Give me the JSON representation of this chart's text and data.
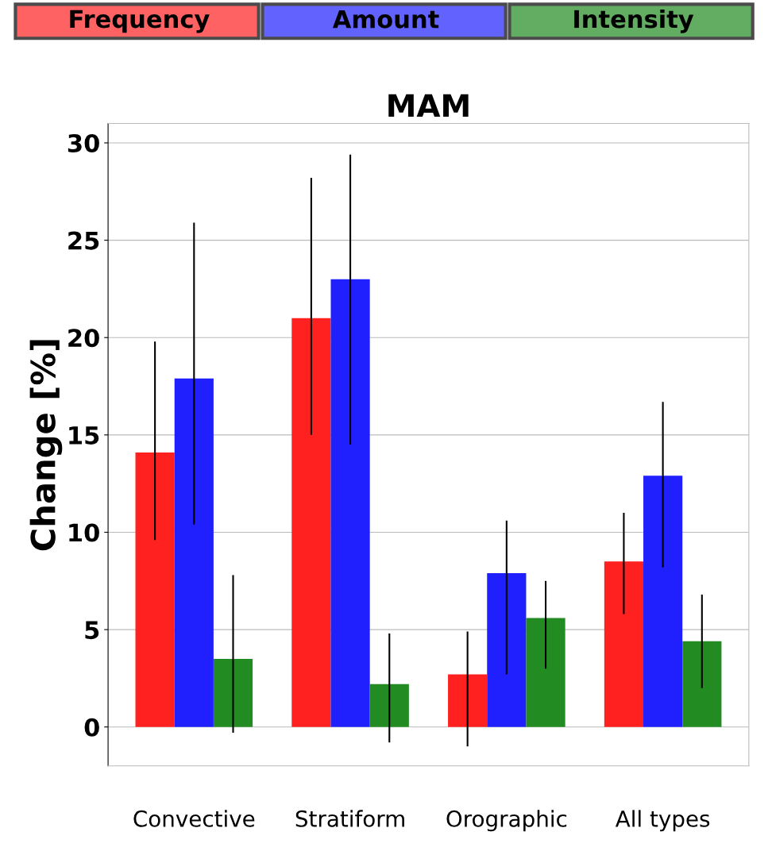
{
  "chart_data": {
    "type": "bar",
    "title": "MAM",
    "ylabel": "Change [%]",
    "categories": [
      "Convective",
      "Stratiform",
      "Orographic",
      "All types"
    ],
    "series": [
      {
        "name": "Frequency",
        "color": "#ff2020",
        "values": [
          14.1,
          21.0,
          2.7,
          8.5
        ],
        "errors": [
          [
            9.6,
            19.8
          ],
          [
            15.0,
            28.2
          ],
          [
            -1.0,
            4.9
          ],
          [
            5.8,
            11.0
          ]
        ]
      },
      {
        "name": "Amount",
        "color": "#2020ff",
        "values": [
          17.9,
          23.0,
          7.9,
          12.9
        ],
        "errors": [
          [
            10.4,
            25.9
          ],
          [
            14.5,
            29.4
          ],
          [
            2.7,
            10.6
          ],
          [
            8.2,
            16.7
          ]
        ]
      },
      {
        "name": "Intensity",
        "color": "#228b22",
        "values": [
          3.5,
          2.2,
          5.6,
          4.4
        ],
        "errors": [
          [
            -0.3,
            7.8
          ],
          [
            -0.8,
            4.8
          ],
          [
            3.0,
            7.5
          ],
          [
            2.0,
            6.8
          ]
        ]
      }
    ],
    "ylim": [
      -2,
      31
    ],
    "yticks": [
      0,
      5,
      10,
      15,
      20,
      25,
      30
    ],
    "grid": "y",
    "legend": "top"
  }
}
